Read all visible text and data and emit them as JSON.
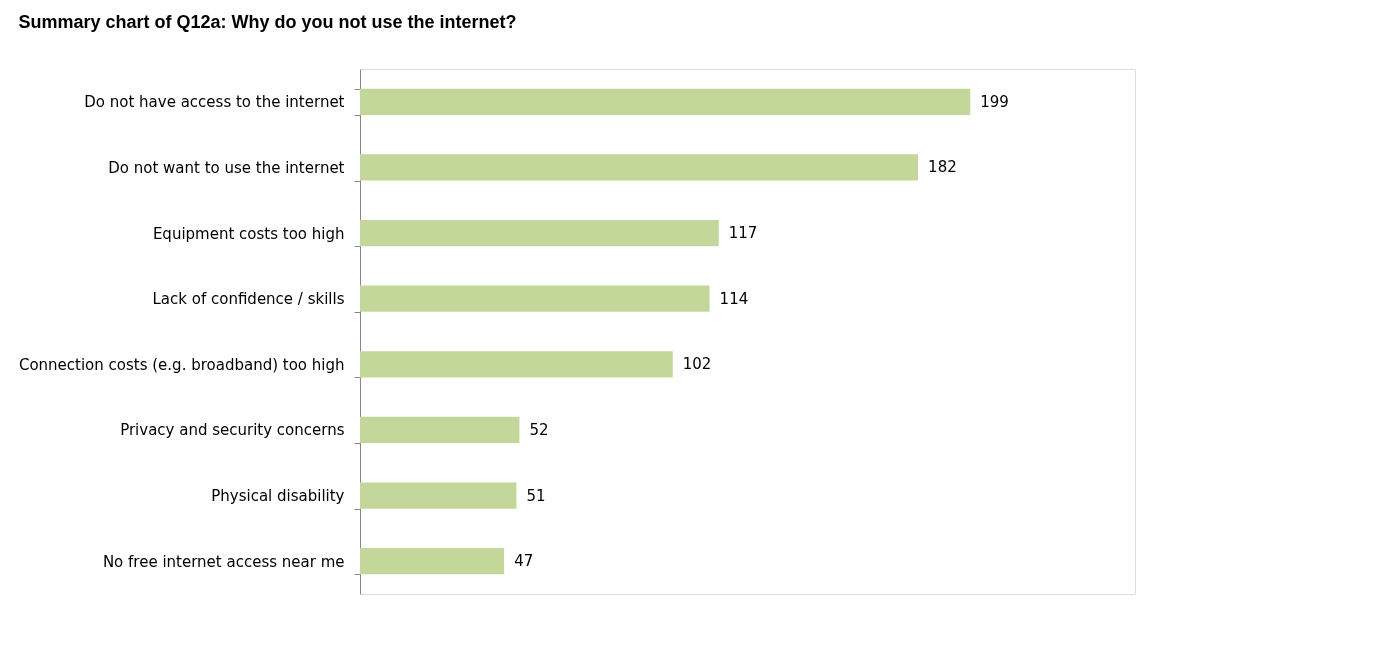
{
  "chart_data": {
    "type": "bar",
    "orientation": "horizontal",
    "title": "Summary chart of Q12a: Why do you not use the internet?",
    "categories": [
      "Do not have access to the internet",
      "Do not want to use the internet",
      "Equipment costs too high",
      "Lack of confidence / skills",
      "Connection costs (e.g. broadband) too high",
      "Privacy and security concerns",
      "Physical disability",
      "No free internet access near me"
    ],
    "values": [
      199,
      182,
      117,
      114,
      102,
      52,
      51,
      47
    ],
    "color": "#c4d79b",
    "data_labels": true,
    "grid": false
  }
}
